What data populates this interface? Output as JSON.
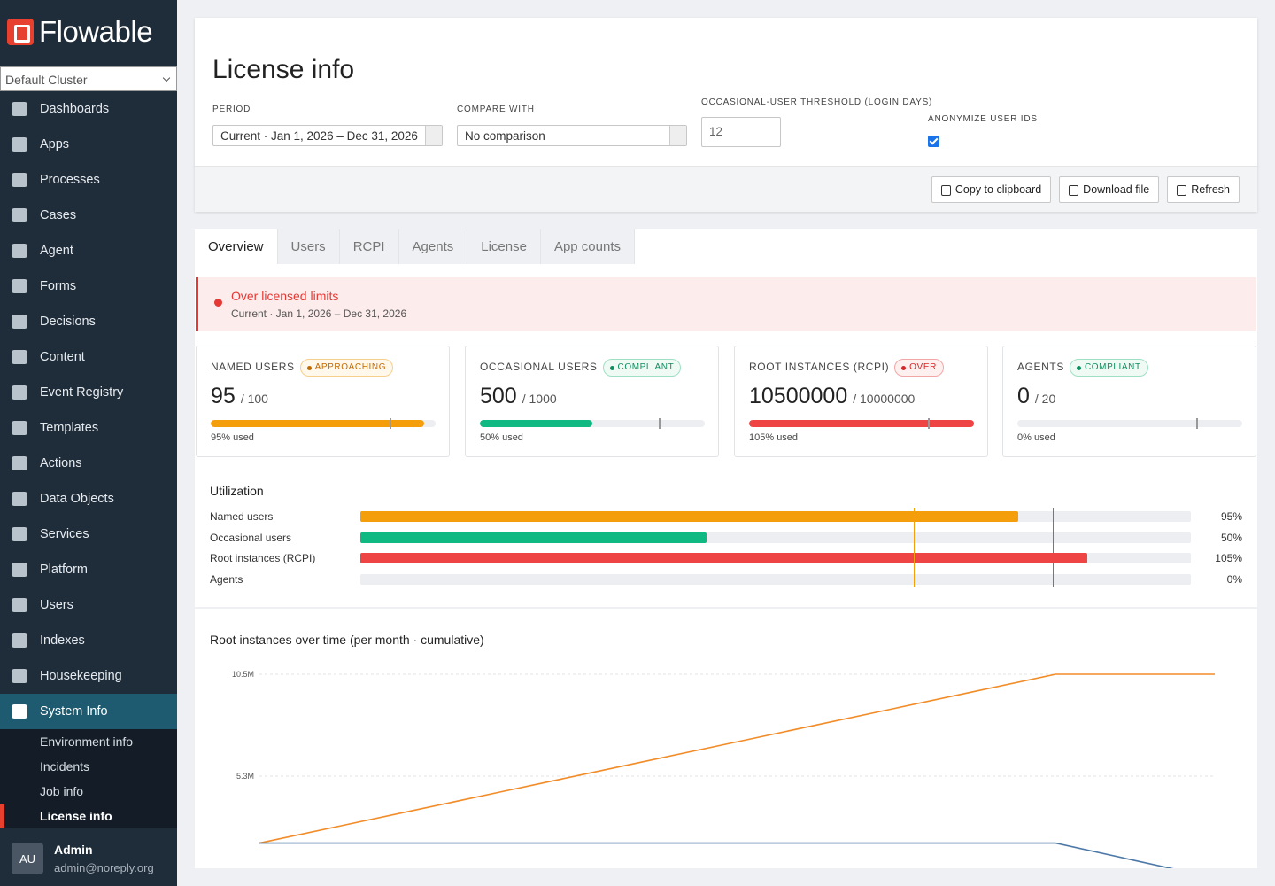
{
  "sidebar": {
    "logo": "Flowable",
    "cluster": "Default Cluster",
    "nav": [
      "Dashboards",
      "Apps",
      "Processes",
      "Cases",
      "Agent",
      "Forms",
      "Decisions",
      "Content",
      "Event Registry",
      "Templates",
      "Actions",
      "Data Objects",
      "Services",
      "Platform",
      "Users",
      "Indexes",
      "Housekeeping"
    ],
    "section": {
      "label": "System Info",
      "items": [
        "Environment info",
        "Incidents",
        "Job info",
        "License info"
      ]
    },
    "user": {
      "initials": "AU",
      "name": "Admin",
      "email": "admin@noreply.org"
    }
  },
  "header": {
    "title": "License info",
    "filters": [
      {
        "label": "PERIOD",
        "value": "Current · Jan 1, 2026 – Dec 31, 2026"
      },
      {
        "label": "COMPARE WITH",
        "value": "No comparison"
      },
      {
        "label": "OCCASIONAL-USER THRESHOLD (LOGIN DAYS)",
        "value": "12"
      },
      {
        "label": "ANONYMIZE USER IDS",
        "checked": true
      }
    ],
    "buttons": [
      "Copy to clipboard",
      "Download file",
      "Refresh"
    ]
  },
  "tabs": [
    "Overview",
    "Users",
    "RCPI",
    "Agents",
    "License",
    "App counts"
  ],
  "alert": {
    "title": "Over licensed limits",
    "subtitle": "Current · Jan 1, 2026 – Dec 31, 2026"
  },
  "card_scale": {
    "xlim": [
      0,
      100
    ],
    "threshold": 80
  },
  "cards": [
    {
      "label": "NAMED USERS",
      "badge": "APPROACHING",
      "status": "warn",
      "value": "95",
      "limit": "/ 100",
      "percent": 95,
      "used": "95% used",
      "color": "#f59e0b"
    },
    {
      "label": "OCCASIONAL USERS",
      "badge": "COMPLIANT",
      "status": "ok",
      "value": "500",
      "limit": "/ 1000",
      "percent": 50,
      "used": "50% used",
      "color": "#10b981"
    },
    {
      "label": "ROOT INSTANCES (RCPI)",
      "badge": "OVER",
      "status": "over",
      "value": "10500000",
      "limit": "/ 10000000",
      "percent": 105,
      "used": "105% used",
      "color": "#ef4444"
    },
    {
      "label": "AGENTS",
      "badge": "COMPLIANT",
      "status": "ok",
      "value": "0",
      "limit": "/ 20",
      "percent": 0,
      "used": "0% used",
      "color": "#10b981"
    }
  ],
  "utilization": {
    "title": "Utilization",
    "categories": [
      "Named users",
      "Occasional users",
      "Root instances (RCPI)",
      "Agents"
    ],
    "values": [
      95,
      50,
      105,
      0
    ],
    "value_labels": [
      "95%",
      "50%",
      "105%",
      "0%"
    ],
    "colors": [
      "#f59e0b",
      "#10b981",
      "#ef4444",
      "#10b981"
    ],
    "xlim": [
      0,
      120
    ],
    "thresholds": [
      {
        "value": 80,
        "color": "#f59e0b"
      },
      {
        "value": 100,
        "color": "#ef4444"
      }
    ]
  },
  "chart_data": {
    "type": "line",
    "title": "Root instances over time (per month · cumulative)",
    "categories": [
      null,
      null,
      null,
      null,
      null,
      null,
      null,
      null,
      null,
      null,
      null,
      null,
      null
    ],
    "series": [
      {
        "color": "#f28c28",
        "values": [
          1800000,
          2670000,
          3540000,
          4410000,
          5280000,
          6150000,
          7020000,
          7890000,
          8760000,
          9630000,
          10500000,
          10500000,
          10500000
        ]
      },
      {
        "color": "#4e79a7",
        "values": [
          1800000,
          1800000,
          1800000,
          1800000,
          1800000,
          1800000,
          1800000,
          1800000,
          1800000,
          1800000,
          1800000,
          900000,
          0
        ]
      }
    ],
    "ylim": [
      0,
      10500000
    ],
    "yticks": [
      {
        "value": 10500000,
        "label": "10.5M"
      },
      {
        "value": 5250000,
        "label": "5.3M"
      }
    ],
    "grid": true
  }
}
